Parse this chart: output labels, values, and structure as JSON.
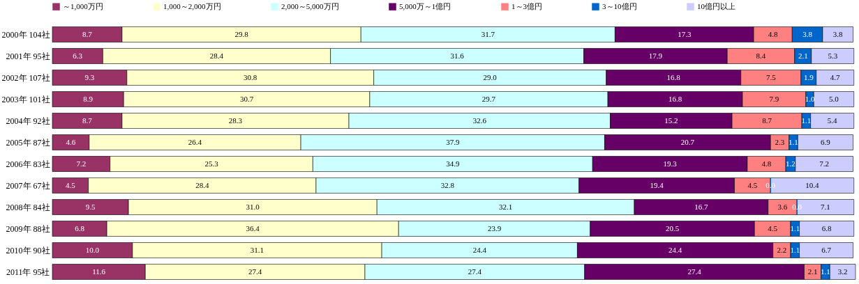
{
  "chart_data": {
    "type": "bar",
    "orientation": "horizontal",
    "stacked": true,
    "legend": "top",
    "grid": false,
    "categories": [
      "2000年 104社",
      "2001年 95社",
      "2002年 107社",
      "2003年 101社",
      "2004年 92社",
      "2005年 87社",
      "2006年 83社",
      "2007年 67社",
      "2008年 84社",
      "2009年 88社",
      "2010年 90社",
      "2011年 95社"
    ],
    "series": [
      {
        "name": "～1,000万円",
        "color": "#993366",
        "values": [
          8.7,
          6.3,
          9.3,
          8.9,
          8.7,
          4.6,
          7.2,
          4.5,
          9.5,
          6.8,
          10.0,
          11.6
        ],
        "value_labels": [
          "8.7",
          "6.3",
          "9.3",
          "8.9",
          "8.7",
          "4.6",
          "7.2",
          "4.5",
          "9.5",
          "6.8",
          "10.0",
          "11.6"
        ]
      },
      {
        "name": "1,000～2,000万円",
        "color": "#ffffcc",
        "values": [
          29.8,
          28.4,
          30.8,
          30.7,
          28.3,
          26.4,
          25.3,
          28.4,
          31.0,
          36.4,
          31.1,
          27.4
        ],
        "value_labels": [
          "29.8",
          "28.4",
          "30.8",
          "30.7",
          "28.3",
          "26.4",
          "25.3",
          "28.4",
          "31.0",
          "36.4",
          "31.1",
          "27.4"
        ]
      },
      {
        "name": "2,000～5,000万円",
        "color": "#ccffff",
        "values": [
          31.7,
          31.6,
          29.0,
          29.7,
          32.6,
          37.9,
          34.9,
          32.8,
          32.1,
          23.9,
          24.4,
          27.4
        ],
        "value_labels": [
          "31.7",
          "31.6",
          "29.0",
          "29.7",
          "32.6",
          "37.9",
          "34.9",
          "32.8",
          "32.1",
          "23.9",
          "24.4",
          "27.4"
        ]
      },
      {
        "name": "5,000万～1億円",
        "color": "#660066",
        "values": [
          17.3,
          17.9,
          16.8,
          16.8,
          15.2,
          20.7,
          19.3,
          19.4,
          16.7,
          20.5,
          24.4,
          27.4
        ],
        "value_labels": [
          "17.3",
          "17.9",
          "16.8",
          "16.8",
          "15.2",
          "20.7",
          "19.3",
          "19.4",
          "16.7",
          "20.5",
          "24.4",
          "27.4"
        ]
      },
      {
        "name": "1～3億円",
        "color": "#ff8080",
        "values": [
          4.8,
          8.4,
          7.5,
          7.9,
          8.7,
          2.3,
          4.8,
          4.5,
          3.6,
          4.5,
          2.2,
          2.1
        ],
        "value_labels": [
          "4.8",
          "8.4",
          "7.5",
          "7.9",
          "8.7",
          "2.3",
          "4.8",
          "4.5",
          "3.6",
          "4.5",
          "2.2",
          "2.1"
        ]
      },
      {
        "name": "3～10億円",
        "color": "#0066cc",
        "values": [
          3.8,
          2.1,
          1.9,
          1.0,
          1.1,
          1.1,
          1.2,
          0.0,
          0.0,
          1.1,
          1.1,
          1.1
        ],
        "value_labels": [
          "3.8",
          "2.1",
          "1.9",
          "1.0",
          "1.1",
          "1.1",
          "1.2",
          "0.0",
          "0.0",
          "1.1",
          "1.1",
          "1.1"
        ]
      },
      {
        "name": "10億円以上",
        "color": "#ccccff",
        "values": [
          3.8,
          5.3,
          4.7,
          5.0,
          5.4,
          6.9,
          7.2,
          10.4,
          7.1,
          6.8,
          6.7,
          3.2
        ],
        "value_labels": [
          "3.8",
          "5.3",
          "4.7",
          "5.0",
          "5.4",
          "6.9",
          "7.2",
          "10.4",
          "7.1",
          "6.8",
          "6.7",
          "3.2"
        ]
      }
    ]
  }
}
